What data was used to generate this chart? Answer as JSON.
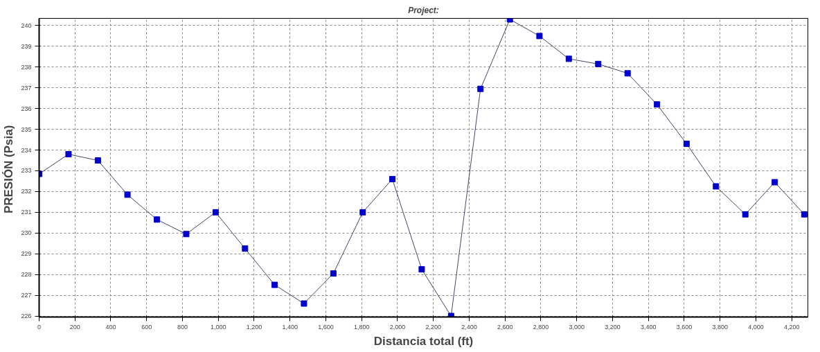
{
  "chart_data": {
    "type": "line",
    "title": "Project:",
    "xlabel": "Distancia total (ft)",
    "ylabel": "PRESIÓN  (Psia)",
    "x": [
      0,
      164,
      328,
      493,
      657,
      821,
      985,
      1149,
      1314,
      1478,
      1642,
      1806,
      1971,
      2135,
      2299,
      2463,
      2627,
      2792,
      2956,
      3120,
      3284,
      3448,
      3613,
      3777,
      3941,
      4105,
      4270
    ],
    "series": [
      {
        "color": "#0000cc",
        "values": [
          232.85,
          233.8,
          233.5,
          231.85,
          230.65,
          229.95,
          231.0,
          229.25,
          227.5,
          226.6,
          228.05,
          231.0,
          232.6,
          228.25,
          226.0,
          236.95,
          240.3,
          239.5,
          238.4,
          238.15,
          237.7,
          236.2,
          234.3,
          232.25,
          230.9,
          232.45,
          230.9
        ]
      }
    ],
    "xlim": [
      0,
      4290
    ],
    "ylim": [
      225.95,
      240.35
    ],
    "xticks": [
      0,
      200,
      400,
      600,
      800,
      {
        "value": 1000,
        "label": "1,000"
      },
      {
        "value": 1200,
        "label": "1,200"
      },
      {
        "value": 1400,
        "label": "1,400"
      },
      {
        "value": 1600,
        "label": "1,600"
      },
      {
        "value": 1800,
        "label": "1,800"
      },
      {
        "value": 2000,
        "label": "2,000"
      },
      {
        "value": 2200,
        "label": "2,200"
      },
      {
        "value": 2400,
        "label": "2,400"
      },
      {
        "value": 2600,
        "label": "2,600"
      },
      {
        "value": 2800,
        "label": "2,800"
      },
      {
        "value": 3000,
        "label": "3,000"
      },
      {
        "value": 3200,
        "label": "3,200"
      },
      {
        "value": 3400,
        "label": "3,400"
      },
      {
        "value": 3600,
        "label": "3,600"
      },
      {
        "value": 3800,
        "label": "3,800"
      },
      {
        "value": 4000,
        "label": "4,000"
      },
      {
        "value": 4200,
        "label": "4,200"
      }
    ],
    "yticks": [
      226,
      227,
      228,
      229,
      230,
      231,
      232,
      233,
      234,
      235,
      236,
      237,
      238,
      239,
      240
    ],
    "grid": true,
    "marker": "square",
    "line_style": "solid"
  }
}
